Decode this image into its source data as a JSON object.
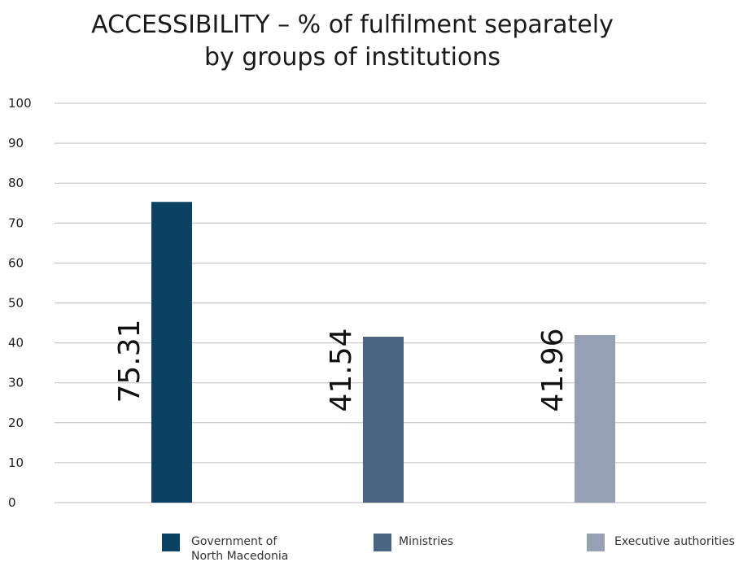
{
  "chart_data": {
    "type": "bar",
    "title_lines": [
      "ACCESSIBILITY – % of fulfilment separately",
      "by groups of institutions"
    ],
    "categories": [
      "Government of North Macedonia",
      "Ministries",
      "Executive authorities"
    ],
    "legend": [
      {
        "lines": [
          "Government of",
          "North Macedonia"
        ],
        "color": "#0b4263"
      },
      {
        "lines": [
          "Ministries"
        ],
        "color": "#4a6582"
      },
      {
        "lines": [
          "Executive authorities"
        ],
        "color": "#96a0b4"
      }
    ],
    "values": [
      75.31,
      41.54,
      41.96
    ],
    "data_labels": [
      "75.31",
      "41.54",
      "41.96"
    ],
    "colors": [
      "#0b4263",
      "#4a6582",
      "#96a0b4"
    ],
    "yticks": [
      0,
      10,
      20,
      30,
      40,
      50,
      60,
      70,
      80,
      90,
      100
    ],
    "ylim": [
      0,
      100
    ],
    "grid": true,
    "legend_position": "bottom"
  }
}
